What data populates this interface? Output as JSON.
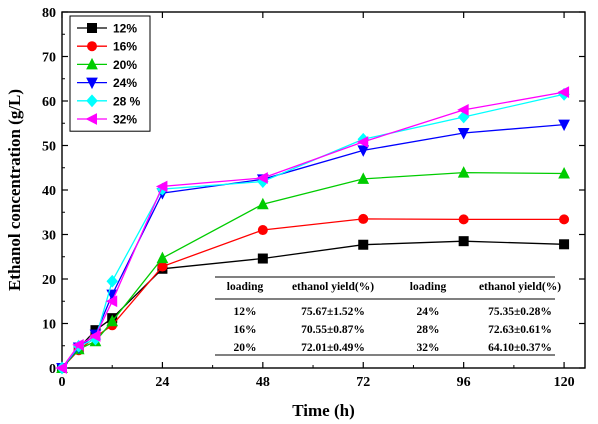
{
  "chart_data": {
    "type": "line",
    "title": "",
    "xlabel": "Time (h)",
    "ylabel": "Ethanol concentration (g/L)",
    "xlim": [
      0,
      125
    ],
    "ylim": [
      0,
      80
    ],
    "xticks": [
      0,
      24,
      48,
      72,
      96,
      120
    ],
    "yticks": [
      0,
      10,
      20,
      30,
      40,
      50,
      60,
      70,
      80
    ],
    "grid": false,
    "legend_position": "top-left",
    "x": [
      0,
      4,
      8,
      12,
      24,
      48,
      72,
      96,
      120
    ],
    "series": [
      {
        "name": "12%",
        "color": "#000000",
        "marker": "square",
        "values": [
          0,
          4.5,
          8.5,
          11.2,
          22.3,
          24.6,
          27.7,
          28.5,
          27.8
        ]
      },
      {
        "name": "16%",
        "color": "#ff0000",
        "marker": "circle",
        "values": [
          0,
          4.0,
          7.0,
          9.6,
          22.8,
          31.0,
          33.5,
          33.4,
          33.4
        ]
      },
      {
        "name": "20%",
        "color": "#00cc00",
        "marker": "triangle-up",
        "values": [
          0,
          4.2,
          6.0,
          10.5,
          24.7,
          36.8,
          42.5,
          43.9,
          43.7
        ]
      },
      {
        "name": "24%",
        "color": "#0000ff",
        "marker": "triangle-down",
        "values": [
          0,
          4.6,
          7.5,
          16.5,
          39.3,
          42.4,
          48.9,
          52.8,
          54.7
        ]
      },
      {
        "name": "28 %",
        "color": "#00ffff",
        "marker": "diamond",
        "values": [
          0,
          4.9,
          6.5,
          19.5,
          40.2,
          41.9,
          51.4,
          56.4,
          61.5
        ]
      },
      {
        "name": "32%",
        "color": "#ff00ff",
        "marker": "triangle-left",
        "values": [
          0,
          5.2,
          7.2,
          15.0,
          40.8,
          42.7,
          50.8,
          58.0,
          62.0
        ]
      }
    ],
    "table": {
      "headers": [
        "loading",
        "ethanol yield(%)",
        "loading",
        "ethanol yield(%)"
      ],
      "rows": [
        [
          "12%",
          "75.67±1.52%",
          "24%",
          "75.35±0.28%"
        ],
        [
          "16%",
          "70.55±0.87%",
          "28%",
          "72.63±0.61%"
        ],
        [
          "20%",
          "72.01±0.49%",
          "32%",
          "64.10±0.37%"
        ]
      ]
    }
  }
}
